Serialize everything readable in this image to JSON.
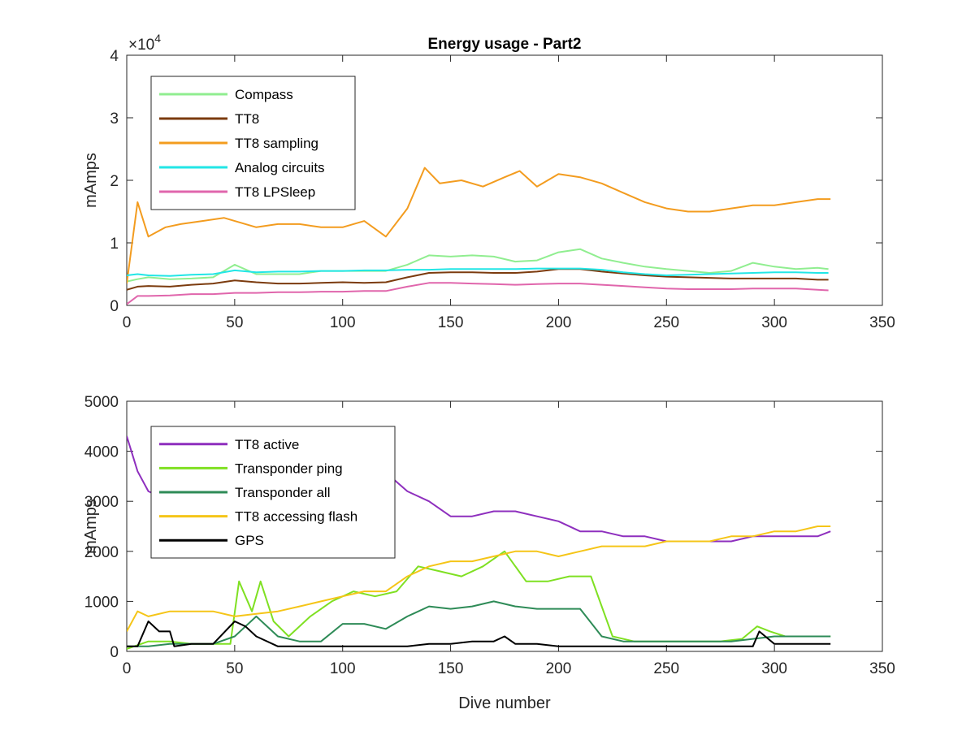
{
  "chart_data": [
    {
      "type": "line",
      "title": "Energy usage - Part2",
      "xlabel": "",
      "ylabel": "mAmps",
      "y_exponent_label": "×10",
      "y_exponent_power": "4",
      "xlim": [
        0,
        350
      ],
      "ylim": [
        0,
        40000
      ],
      "xticks": [
        0,
        50,
        100,
        150,
        200,
        250,
        300,
        350
      ],
      "yticks": [
        0,
        10000,
        20000,
        30000,
        40000
      ],
      "ytick_labels": [
        "0",
        "1",
        "2",
        "3",
        "4"
      ],
      "legend_position": "top-left",
      "series": [
        {
          "name": "Compass",
          "color": "#90ee90",
          "x": [
            0,
            5,
            10,
            20,
            30,
            40,
            50,
            60,
            70,
            80,
            90,
            100,
            110,
            120,
            130,
            140,
            150,
            160,
            170,
            180,
            190,
            200,
            210,
            220,
            230,
            240,
            250,
            260,
            270,
            280,
            290,
            300,
            310,
            320,
            325
          ],
          "values": [
            3800,
            4200,
            4500,
            4200,
            4300,
            4500,
            6500,
            5000,
            5000,
            5000,
            5500,
            5500,
            5500,
            5500,
            6500,
            8000,
            7800,
            8000,
            7800,
            7000,
            7200,
            8500,
            9000,
            7500,
            6800,
            6200,
            5800,
            5500,
            5200,
            5500,
            6800,
            6200,
            5800,
            6000,
            5800
          ]
        },
        {
          "name": "TT8",
          "color": "#7b3b0e",
          "x": [
            0,
            5,
            10,
            20,
            30,
            40,
            50,
            60,
            70,
            80,
            90,
            100,
            110,
            120,
            130,
            140,
            150,
            160,
            170,
            180,
            190,
            200,
            210,
            220,
            230,
            240,
            250,
            260,
            270,
            280,
            290,
            300,
            310,
            320,
            325
          ],
          "values": [
            2500,
            3000,
            3100,
            3000,
            3300,
            3500,
            4000,
            3700,
            3500,
            3500,
            3600,
            3700,
            3600,
            3700,
            4500,
            5200,
            5300,
            5300,
            5200,
            5200,
            5400,
            5800,
            5800,
            5400,
            5100,
            4800,
            4600,
            4500,
            4400,
            4300,
            4300,
            4300,
            4300,
            4100,
            4100
          ]
        },
        {
          "name": "TT8 sampling",
          "color": "#f39c1f",
          "x": [
            0,
            5,
            10,
            18,
            25,
            35,
            45,
            50,
            60,
            70,
            80,
            90,
            100,
            110,
            120,
            130,
            138,
            145,
            155,
            165,
            175,
            182,
            190,
            200,
            210,
            220,
            230,
            240,
            250,
            260,
            270,
            280,
            290,
            300,
            310,
            320,
            326
          ],
          "values": [
            3500,
            16500,
            11000,
            12500,
            13000,
            13500,
            14000,
            13500,
            12500,
            13000,
            13000,
            12500,
            12500,
            13500,
            11000,
            15500,
            22000,
            19500,
            20000,
            19000,
            20500,
            21500,
            19000,
            21000,
            20500,
            19500,
            18000,
            16500,
            15500,
            15000,
            15000,
            15500,
            16000,
            16000,
            16500,
            17000,
            17000
          ]
        },
        {
          "name": "Analog circuits",
          "color": "#22e6e6",
          "x": [
            0,
            5,
            10,
            20,
            30,
            40,
            50,
            60,
            70,
            80,
            90,
            100,
            110,
            120,
            130,
            140,
            150,
            160,
            170,
            180,
            190,
            200,
            210,
            220,
            230,
            240,
            250,
            260,
            270,
            280,
            290,
            300,
            310,
            320,
            325
          ],
          "values": [
            4800,
            5000,
            4800,
            4700,
            4900,
            5000,
            5600,
            5300,
            5400,
            5400,
            5500,
            5500,
            5600,
            5600,
            5700,
            5700,
            5800,
            5800,
            5800,
            5800,
            5900,
            5900,
            5900,
            5700,
            5300,
            5000,
            4800,
            4900,
            5000,
            5100,
            5200,
            5300,
            5300,
            5200,
            5200
          ]
        },
        {
          "name": "TT8 LPSleep",
          "color": "#e066ac",
          "x": [
            0,
            5,
            10,
            20,
            30,
            40,
            50,
            60,
            70,
            80,
            90,
            100,
            110,
            120,
            130,
            140,
            150,
            160,
            170,
            180,
            190,
            200,
            210,
            220,
            230,
            240,
            250,
            260,
            270,
            280,
            290,
            300,
            310,
            320,
            325
          ],
          "values": [
            200,
            1500,
            1500,
            1600,
            1800,
            1800,
            2000,
            2000,
            2100,
            2100,
            2200,
            2200,
            2300,
            2300,
            3000,
            3600,
            3600,
            3500,
            3400,
            3300,
            3400,
            3500,
            3500,
            3300,
            3100,
            2900,
            2700,
            2600,
            2600,
            2600,
            2700,
            2700,
            2700,
            2500,
            2400
          ]
        }
      ]
    },
    {
      "type": "line",
      "title": "",
      "xlabel": "Dive number",
      "ylabel": "mAmps",
      "xlim": [
        0,
        350
      ],
      "ylim": [
        0,
        5000
      ],
      "xticks": [
        0,
        50,
        100,
        150,
        200,
        250,
        300,
        350
      ],
      "yticks": [
        0,
        1000,
        2000,
        3000,
        4000,
        5000
      ],
      "ytick_labels": [
        "0",
        "1000",
        "2000",
        "3000",
        "4000",
        "5000"
      ],
      "legend_position": "top-left",
      "series": [
        {
          "name": "TT8 active",
          "color": "#8e2fbe",
          "x": [
            0,
            5,
            10,
            20,
            40,
            60,
            80,
            100,
            118,
            122,
            130,
            140,
            150,
            160,
            170,
            180,
            190,
            200,
            210,
            220,
            230,
            240,
            250,
            260,
            270,
            280,
            290,
            300,
            310,
            320,
            326
          ],
          "values": [
            4300,
            3600,
            3200,
            3000,
            3000,
            3000,
            3000,
            3000,
            3800,
            3500,
            3200,
            3000,
            2700,
            2700,
            2800,
            2800,
            2700,
            2600,
            2400,
            2400,
            2300,
            2300,
            2200,
            2200,
            2200,
            2200,
            2300,
            2300,
            2300,
            2300,
            2400
          ]
        },
        {
          "name": "Transponder ping",
          "color": "#7fe022",
          "x": [
            0,
            10,
            20,
            30,
            40,
            48,
            52,
            58,
            62,
            68,
            75,
            85,
            95,
            105,
            115,
            125,
            135,
            145,
            155,
            165,
            175,
            185,
            195,
            205,
            215,
            220,
            225,
            235,
            245,
            255,
            265,
            275,
            285,
            292,
            298,
            305,
            315,
            326
          ],
          "values": [
            50,
            200,
            200,
            150,
            150,
            150,
            1400,
            800,
            1400,
            600,
            300,
            700,
            1000,
            1200,
            1100,
            1200,
            1700,
            1600,
            1500,
            1700,
            2000,
            1400,
            1400,
            1500,
            1500,
            900,
            300,
            200,
            200,
            200,
            200,
            200,
            250,
            500,
            400,
            300,
            300,
            300
          ]
        },
        {
          "name": "Transponder all",
          "color": "#2e8b57",
          "x": [
            0,
            10,
            20,
            30,
            40,
            50,
            60,
            70,
            80,
            90,
            100,
            110,
            120,
            130,
            140,
            150,
            160,
            170,
            180,
            190,
            200,
            210,
            220,
            230,
            240,
            250,
            260,
            270,
            280,
            290,
            300,
            310,
            320,
            326
          ],
          "values": [
            100,
            100,
            150,
            150,
            150,
            300,
            700,
            300,
            200,
            200,
            550,
            550,
            450,
            700,
            900,
            850,
            900,
            1000,
            900,
            850,
            850,
            850,
            300,
            200,
            200,
            200,
            200,
            200,
            200,
            250,
            300,
            300,
            300,
            300
          ]
        },
        {
          "name": "TT8 accessing flash",
          "color": "#f5c518",
          "x": [
            0,
            5,
            10,
            20,
            30,
            40,
            50,
            60,
            70,
            80,
            90,
            100,
            110,
            120,
            130,
            140,
            150,
            160,
            170,
            180,
            190,
            200,
            210,
            220,
            230,
            240,
            250,
            260,
            270,
            280,
            290,
            300,
            310,
            320,
            326
          ],
          "values": [
            400,
            800,
            700,
            800,
            800,
            800,
            700,
            750,
            800,
            900,
            1000,
            1100,
            1200,
            1200,
            1500,
            1700,
            1800,
            1800,
            1900,
            2000,
            2000,
            1900,
            2000,
            2100,
            2100,
            2100,
            2200,
            2200,
            2200,
            2300,
            2300,
            2400,
            2400,
            2500,
            2500
          ]
        },
        {
          "name": "GPS",
          "color": "#000000",
          "x": [
            0,
            5,
            10,
            15,
            20,
            22,
            30,
            40,
            50,
            55,
            60,
            70,
            80,
            90,
            100,
            110,
            120,
            130,
            140,
            150,
            160,
            170,
            175,
            180,
            190,
            200,
            210,
            220,
            230,
            240,
            250,
            260,
            270,
            280,
            290,
            293,
            300,
            310,
            320,
            326
          ],
          "values": [
            100,
            100,
            600,
            400,
            400,
            100,
            150,
            150,
            600,
            500,
            300,
            100,
            100,
            100,
            100,
            100,
            100,
            100,
            150,
            150,
            200,
            200,
            300,
            150,
            150,
            100,
            100,
            100,
            100,
            100,
            100,
            100,
            100,
            100,
            100,
            400,
            150,
            150,
            150,
            150
          ]
        }
      ]
    }
  ]
}
